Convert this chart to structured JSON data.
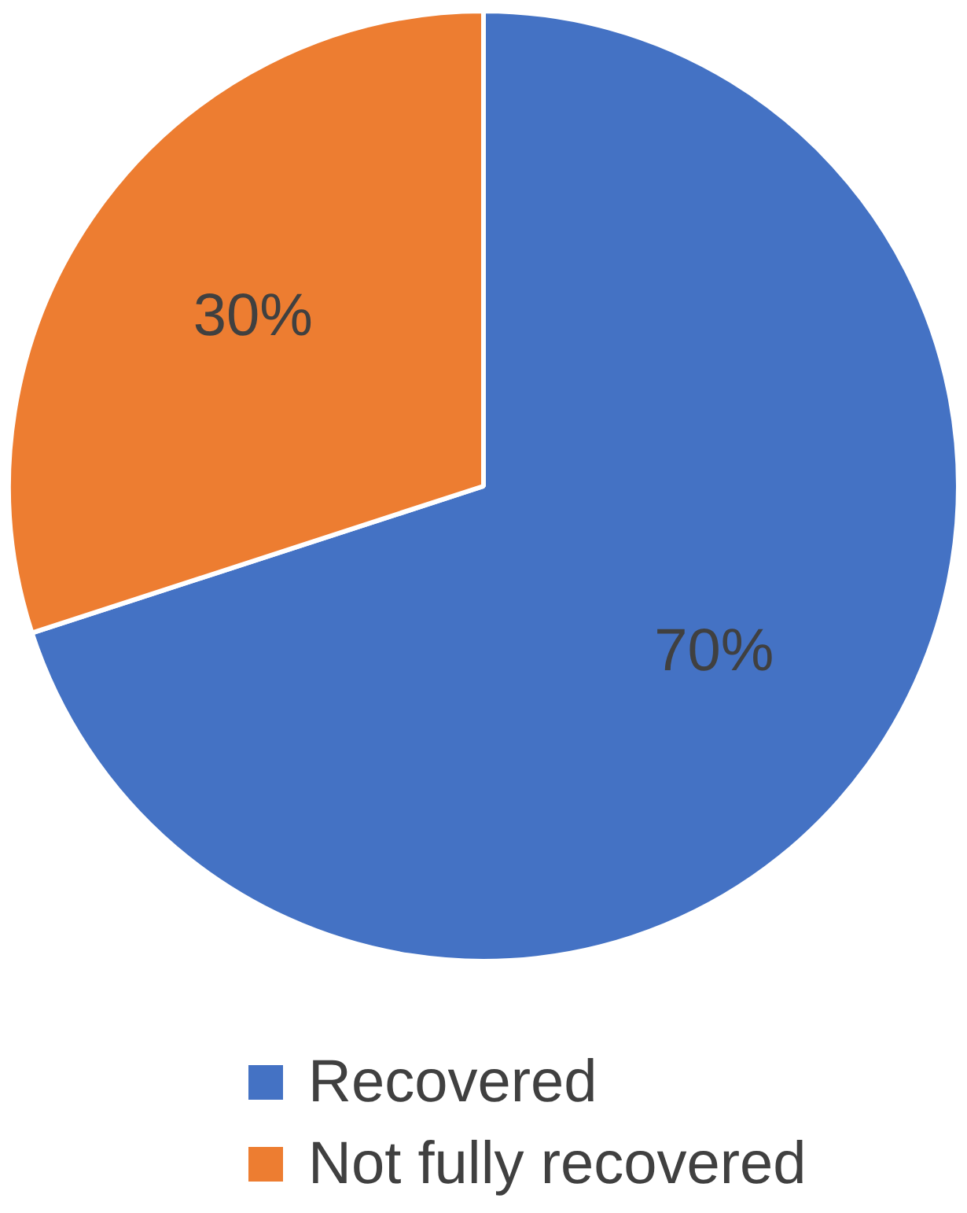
{
  "chart_data": {
    "type": "pie",
    "categories": [
      "Recovered",
      "Not fully recovered"
    ],
    "values": [
      70,
      30
    ],
    "colors": [
      "#4472c4",
      "#ed7d31"
    ],
    "value_labels": [
      "70%",
      "30%"
    ],
    "legend": "bottom"
  }
}
